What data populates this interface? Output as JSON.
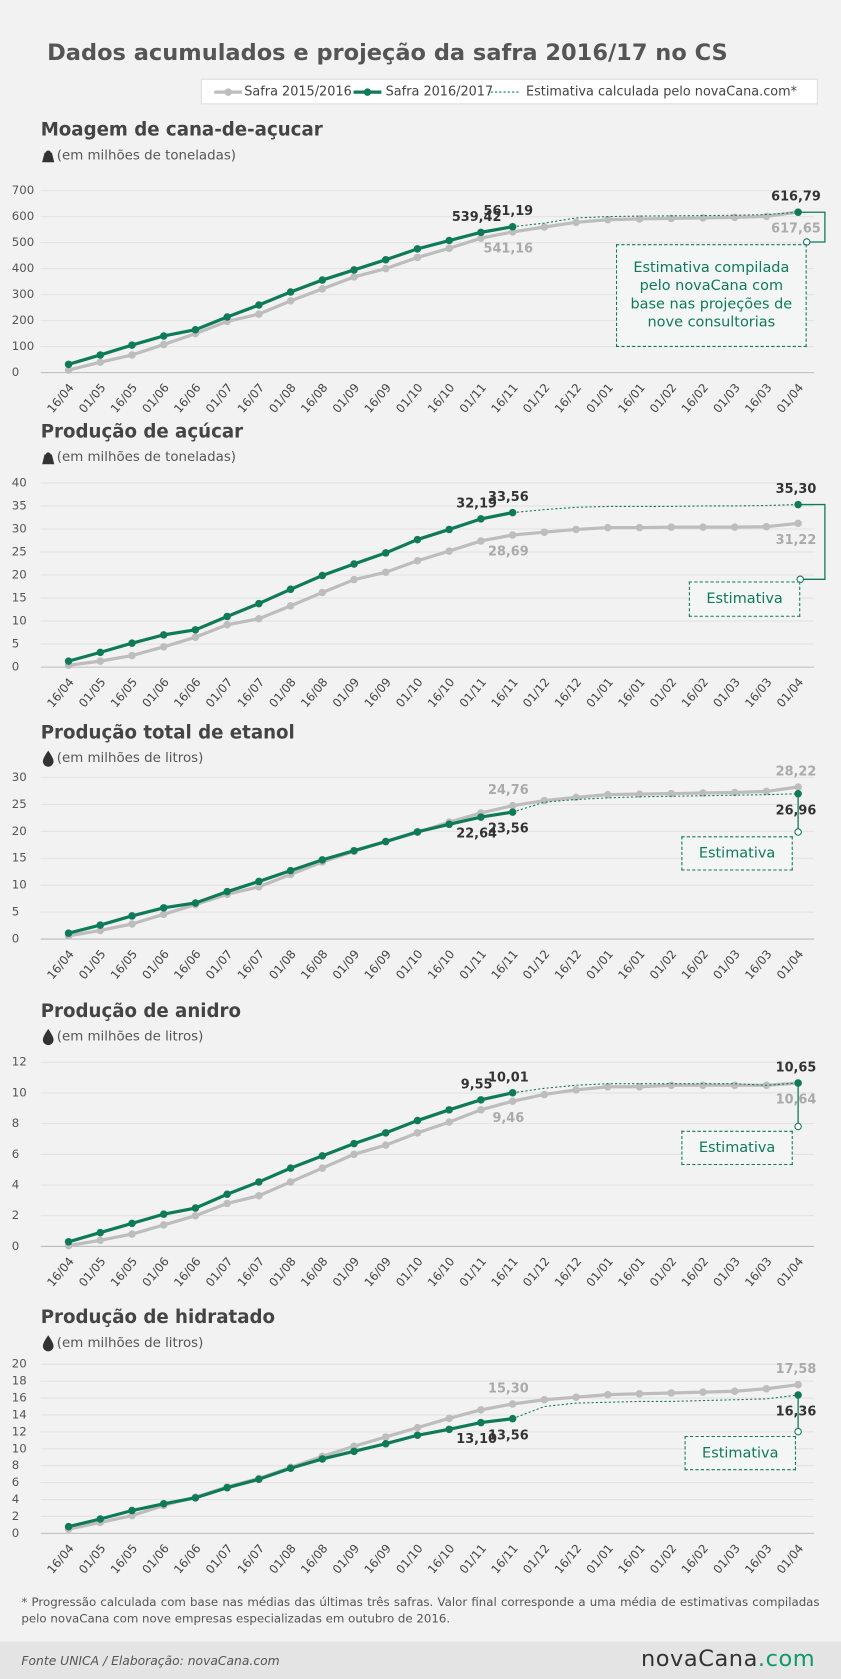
{
  "title": "Dados acumulados e projeção da safra 2016/17 no CS",
  "chart_data": [
    {
      "type": "line",
      "title": "Moagem de cana-de-açucar",
      "subtitle": "(em milhões de toneladas)",
      "categories": [
        "16/04",
        "01/05",
        "16/05",
        "01/06",
        "16/06",
        "01/07",
        "16/07",
        "01/08",
        "16/08",
        "01/09",
        "16/09",
        "01/10",
        "16/10",
        "01/11",
        "16/11",
        "01/12",
        "16/12",
        "01/01",
        "16/01",
        "01/02",
        "16/02",
        "01/03",
        "16/03",
        "01/04"
      ],
      "ylim": [
        0,
        700
      ],
      "yticks": [
        0,
        100,
        200,
        300,
        400,
        500,
        600,
        700
      ],
      "grid": true,
      "annotation": "Estimativa compilada pelo novaCana com base nas projeções de nove consultorias",
      "series": [
        {
          "name": "Safra 2015/2016",
          "color": "#bdbdbd",
          "values": [
            10,
            40,
            68,
            108,
            150,
            197,
            225,
            276,
            322,
            368,
            400,
            443,
            478,
            517,
            541.16,
            560,
            578,
            588,
            591,
            593,
            595,
            597,
            601,
            617.65
          ],
          "value_labels": [
            null,
            null,
            null,
            null,
            null,
            null,
            null,
            null,
            null,
            null,
            null,
            null,
            null,
            null,
            "541,16",
            null,
            null,
            null,
            null,
            null,
            null,
            null,
            null,
            "617,65"
          ]
        },
        {
          "name": "Safra 2016/2017",
          "color": "#0f7a5a",
          "values": [
            32,
            68,
            106,
            141,
            165,
            214,
            260,
            310,
            356,
            395,
            434,
            476,
            508,
            539.42,
            561.19,
            null,
            null,
            null,
            null,
            null,
            null,
            null,
            null,
            616.79
          ],
          "value_labels": [
            null,
            null,
            null,
            null,
            null,
            null,
            null,
            null,
            null,
            null,
            null,
            null,
            null,
            "539,42",
            "561,19",
            null,
            null,
            null,
            null,
            null,
            null,
            null,
            null,
            "616,79"
          ]
        },
        {
          "name": "Estimativa calculada pelo novaCana.com*",
          "color": "#0f7a5a",
          "style": "dashed",
          "values": [
            null,
            null,
            null,
            null,
            null,
            null,
            null,
            null,
            null,
            null,
            null,
            null,
            null,
            null,
            561.19,
            575,
            595,
            600,
            602,
            603,
            604,
            605,
            608,
            616.79
          ]
        }
      ]
    },
    {
      "type": "line",
      "title": "Produção de açúcar",
      "subtitle": "(em milhões de toneladas)",
      "categories": [
        "16/04",
        "01/05",
        "16/05",
        "01/06",
        "16/06",
        "01/07",
        "16/07",
        "01/08",
        "16/08",
        "01/09",
        "16/09",
        "01/10",
        "16/10",
        "01/11",
        "16/11",
        "01/12",
        "16/12",
        "01/01",
        "16/01",
        "01/02",
        "16/02",
        "01/03",
        "16/03",
        "01/04"
      ],
      "ylim": [
        0,
        40
      ],
      "yticks": [
        0,
        5,
        10,
        15,
        20,
        25,
        30,
        35,
        40
      ],
      "grid": true,
      "annotation": "Estimativa",
      "series": [
        {
          "color": "#bdbdbd",
          "values": [
            0.4,
            1.3,
            2.5,
            4.4,
            6.5,
            9.2,
            10.5,
            13.3,
            16.2,
            19,
            20.6,
            23.1,
            25.2,
            27.4,
            28.69,
            29.3,
            29.9,
            30.3,
            30.3,
            30.4,
            30.4,
            30.4,
            30.5,
            31.22
          ],
          "value_labels": [
            null,
            null,
            null,
            null,
            null,
            null,
            null,
            null,
            null,
            null,
            null,
            null,
            null,
            null,
            "28,69",
            null,
            null,
            null,
            null,
            null,
            null,
            null,
            null,
            "31,22"
          ]
        },
        {
          "color": "#0f7a5a",
          "values": [
            1.3,
            3.2,
            5.2,
            7,
            8.1,
            11,
            13.8,
            16.9,
            19.9,
            22.4,
            24.8,
            27.7,
            29.9,
            32.19,
            33.56,
            null,
            null,
            null,
            null,
            null,
            null,
            null,
            null,
            35.3
          ],
          "value_labels": [
            null,
            null,
            null,
            null,
            null,
            null,
            null,
            null,
            null,
            null,
            null,
            null,
            null,
            "32,19",
            "33,56",
            null,
            null,
            null,
            null,
            null,
            null,
            null,
            null,
            "35,30"
          ]
        },
        {
          "color": "#0f7a5a",
          "style": "dashed",
          "values": [
            null,
            null,
            null,
            null,
            null,
            null,
            null,
            null,
            null,
            null,
            null,
            null,
            null,
            null,
            33.56,
            34.2,
            34.7,
            34.9,
            34.9,
            34.9,
            35,
            35,
            35.1,
            35.3
          ]
        }
      ]
    },
    {
      "type": "line",
      "title": "Produção total de etanol",
      "subtitle": "(em milhões de litros)",
      "categories": [
        "16/04",
        "01/05",
        "16/05",
        "01/06",
        "16/06",
        "01/07",
        "16/07",
        "01/08",
        "16/08",
        "01/09",
        "16/09",
        "01/10",
        "16/10",
        "01/11",
        "16/11",
        "01/12",
        "16/12",
        "01/01",
        "16/01",
        "01/02",
        "16/02",
        "01/03",
        "16/03",
        "01/04"
      ],
      "ylim": [
        0,
        30
      ],
      "yticks": [
        0,
        5,
        10,
        15,
        20,
        25,
        30
      ],
      "grid": true,
      "annotation": "Estimativa",
      "series": [
        {
          "color": "#bdbdbd",
          "values": [
            0.6,
            1.6,
            2.8,
            4.6,
            6.4,
            8.3,
            9.7,
            12,
            14.3,
            16.3,
            18.1,
            19.8,
            21.7,
            23.4,
            24.76,
            25.7,
            26.3,
            26.8,
            26.9,
            27,
            27.1,
            27.2,
            27.4,
            28.22
          ],
          "value_labels": [
            null,
            null,
            null,
            null,
            null,
            null,
            null,
            null,
            null,
            null,
            null,
            null,
            null,
            null,
            "24,76",
            null,
            null,
            null,
            null,
            null,
            null,
            null,
            null,
            "28,22"
          ]
        },
        {
          "color": "#0f7a5a",
          "values": [
            1.1,
            2.6,
            4.3,
            5.8,
            6.7,
            8.8,
            10.7,
            12.7,
            14.7,
            16.4,
            18.1,
            19.9,
            21.3,
            22.64,
            23.56,
            null,
            null,
            null,
            null,
            null,
            null,
            null,
            null,
            26.96
          ],
          "value_labels": [
            null,
            null,
            null,
            null,
            null,
            null,
            null,
            null,
            null,
            null,
            null,
            null,
            null,
            "22,64",
            "23,56",
            null,
            null,
            null,
            null,
            null,
            null,
            null,
            null,
            "26,96"
          ]
        },
        {
          "color": "#0f7a5a",
          "style": "dashed",
          "values": [
            null,
            null,
            null,
            null,
            null,
            null,
            null,
            null,
            null,
            null,
            null,
            null,
            null,
            null,
            23.56,
            25.4,
            25.9,
            26.2,
            26.4,
            26.5,
            26.6,
            26.7,
            26.8,
            26.96
          ]
        }
      ]
    },
    {
      "type": "line",
      "title": "Produção de anidro",
      "subtitle": "(em milhões de litros)",
      "categories": [
        "16/04",
        "01/05",
        "16/05",
        "01/06",
        "16/06",
        "01/07",
        "16/07",
        "01/08",
        "16/08",
        "01/09",
        "16/09",
        "01/10",
        "16/10",
        "01/11",
        "16/11",
        "01/12",
        "16/12",
        "01/01",
        "16/01",
        "01/02",
        "16/02",
        "01/03",
        "16/03",
        "01/04"
      ],
      "ylim": [
        0,
        12
      ],
      "yticks": [
        0,
        2,
        4,
        6,
        8,
        10,
        12
      ],
      "grid": true,
      "annotation": "Estimativa",
      "series": [
        {
          "color": "#bdbdbd",
          "values": [
            0.05,
            0.4,
            0.8,
            1.4,
            2,
            2.8,
            3.3,
            4.2,
            5.1,
            6,
            6.6,
            7.4,
            8.1,
            8.9,
            9.46,
            9.9,
            10.2,
            10.4,
            10.4,
            10.5,
            10.5,
            10.5,
            10.5,
            10.64
          ],
          "value_labels": [
            null,
            null,
            null,
            null,
            null,
            null,
            null,
            null,
            null,
            null,
            null,
            null,
            null,
            null,
            "9,46",
            null,
            null,
            null,
            null,
            null,
            null,
            null,
            null,
            "10,64"
          ]
        },
        {
          "color": "#0f7a5a",
          "values": [
            0.3,
            0.9,
            1.5,
            2.1,
            2.5,
            3.4,
            4.2,
            5.1,
            5.9,
            6.7,
            7.4,
            8.2,
            8.9,
            9.55,
            10.01,
            null,
            null,
            null,
            null,
            null,
            null,
            null,
            null,
            10.65
          ],
          "value_labels": [
            null,
            null,
            null,
            null,
            null,
            null,
            null,
            null,
            null,
            null,
            null,
            null,
            null,
            "9,55",
            "10,01",
            null,
            null,
            null,
            null,
            null,
            null,
            null,
            null,
            "10,65"
          ]
        },
        {
          "color": "#0f7a5a",
          "style": "dashed",
          "values": [
            null,
            null,
            null,
            null,
            null,
            null,
            null,
            null,
            null,
            null,
            null,
            null,
            null,
            null,
            10.01,
            10.3,
            10.5,
            10.6,
            10.6,
            10.6,
            10.6,
            10.6,
            10.5,
            10.65
          ]
        }
      ]
    },
    {
      "type": "line",
      "title": "Produção de hidratado",
      "subtitle": "(em milhões de litros)",
      "categories": [
        "16/04",
        "01/05",
        "16/05",
        "01/06",
        "16/06",
        "01/07",
        "16/07",
        "01/08",
        "16/08",
        "01/09",
        "16/09",
        "01/10",
        "16/10",
        "01/11",
        "16/11",
        "01/12",
        "16/12",
        "01/01",
        "16/01",
        "01/02",
        "16/02",
        "01/03",
        "16/03",
        "01/04"
      ],
      "ylim": [
        0,
        20
      ],
      "yticks": [
        0,
        2,
        4,
        6,
        8,
        10,
        12,
        14,
        16,
        18,
        20
      ],
      "grid": true,
      "annotation": "Estimativa",
      "series": [
        {
          "color": "#bdbdbd",
          "values": [
            0.5,
            1.3,
            2.1,
            3.3,
            4.3,
            5.5,
            6.5,
            7.8,
            9.1,
            10.3,
            11.4,
            12.5,
            13.6,
            14.6,
            15.3,
            15.8,
            16.1,
            16.4,
            16.5,
            16.6,
            16.7,
            16.8,
            17.1,
            17.58
          ],
          "value_labels": [
            null,
            null,
            null,
            null,
            null,
            null,
            null,
            null,
            null,
            null,
            null,
            null,
            null,
            null,
            "15,30",
            null,
            null,
            null,
            null,
            null,
            null,
            null,
            null,
            "17,58"
          ]
        },
        {
          "color": "#0f7a5a",
          "values": [
            0.8,
            1.7,
            2.7,
            3.5,
            4.2,
            5.4,
            6.4,
            7.7,
            8.8,
            9.7,
            10.6,
            11.6,
            12.3,
            13.1,
            13.56,
            null,
            null,
            null,
            null,
            null,
            null,
            null,
            null,
            16.36
          ],
          "value_labels": [
            null,
            null,
            null,
            null,
            null,
            null,
            null,
            null,
            null,
            null,
            null,
            null,
            null,
            "13,10",
            "13,56",
            null,
            null,
            null,
            null,
            null,
            null,
            null,
            null,
            "16,36"
          ]
        },
        {
          "color": "#0f7a5a",
          "style": "dashed",
          "values": [
            null,
            null,
            null,
            null,
            null,
            null,
            null,
            null,
            null,
            null,
            null,
            null,
            null,
            null,
            13.56,
            15,
            15.4,
            15.5,
            15.6,
            15.6,
            15.7,
            15.8,
            15.9,
            16.36
          ]
        }
      ]
    }
  ],
  "footnote": "* Progressão calculada com base nas médias das últimas três safras. Valor final corresponde a uma média de estimativas compiladas pelo novaCana com nove empresas especializadas em outubro de 2016.",
  "source": "Fonte UNICA / Elaboração: novaCana.com",
  "logo": {
    "name": "novaCana",
    "suffix": ".com"
  }
}
